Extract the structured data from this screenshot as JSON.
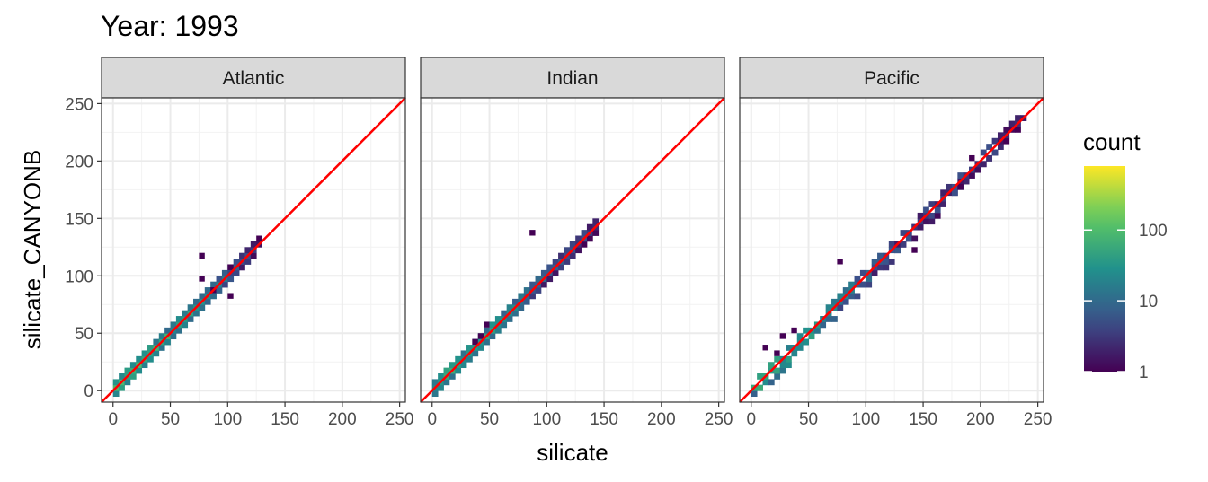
{
  "title": "Year: 1993",
  "chart_data": {
    "type": "heatmap",
    "subtype": "2D bin count (facetted) with identity line",
    "title": "Year: 1993",
    "xlabel": "silicate",
    "ylabel": "silicate_CANYONB",
    "xlim": [
      -10,
      255
    ],
    "ylim": [
      -10,
      255
    ],
    "x_ticks": [
      "0",
      "50",
      "100",
      "150",
      "200",
      "250"
    ],
    "y_ticks": [
      "0",
      "50",
      "100",
      "150",
      "200",
      "250"
    ],
    "reference_line": {
      "slope": 1,
      "intercept": 0,
      "color": "#ff0000"
    },
    "grid": true,
    "legend": {
      "title": "count",
      "scale": "log10",
      "labels": [
        "1",
        "10",
        "100"
      ],
      "max": 800,
      "colormap": [
        "#440154",
        "#3b528b",
        "#21918c",
        "#5ec962",
        "#fde725"
      ],
      "placement": "right"
    },
    "panels": [
      {
        "name": "Atlantic",
        "silicate_range": [
          0,
          128
        ],
        "density_peak": 65,
        "spread": 5,
        "outliers": [
          [
            78,
            118
          ],
          [
            89,
            85
          ],
          [
            102,
            105
          ],
          [
            101,
            84
          ],
          [
            79,
            97
          ]
        ]
      },
      {
        "name": "Indian",
        "silicate_range": [
          0,
          145
        ],
        "density_peak": 40,
        "spread": 6,
        "outliers": [
          [
            88,
            139
          ],
          [
            40,
            45
          ],
          [
            45,
            55
          ],
          [
            37,
            42
          ]
        ]
      },
      {
        "name": "Pacific",
        "silicate_range": [
          0,
          240
        ],
        "density_peak": 45,
        "spread": 7,
        "outliers": [
          [
            10,
            36
          ],
          [
            20,
            32
          ],
          [
            75,
            110
          ],
          [
            140,
            120
          ],
          [
            180,
            175
          ],
          [
            190,
            200
          ],
          [
            35,
            50
          ],
          [
            28,
            45
          ]
        ]
      }
    ]
  }
}
